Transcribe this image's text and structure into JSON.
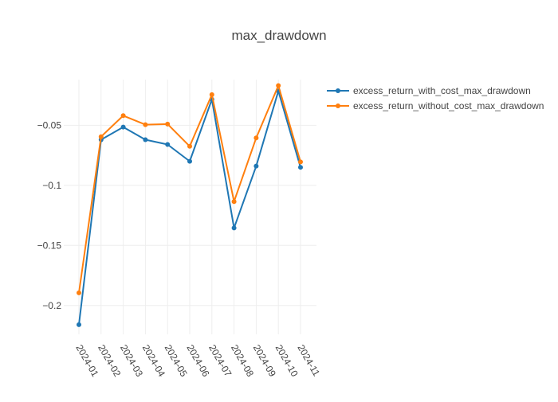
{
  "chart_data": {
    "type": "line",
    "title": "max_drawdown",
    "xlabel": "",
    "ylabel": "",
    "x": [
      "2024-01",
      "2024-02",
      "2024-03",
      "2024-04",
      "2024-05",
      "2024-06",
      "2024-07",
      "2024-08",
      "2024-09",
      "2024-10",
      "2024-11"
    ],
    "y_ticks": [
      -0.05,
      -0.1,
      -0.15,
      -0.2
    ],
    "y_tick_labels": [
      "−0.05",
      "−0.1",
      "−0.15",
      "−0.2"
    ],
    "ylim": [
      -0.224,
      -0.012
    ],
    "grid": true,
    "legend_position": "top-right",
    "series": [
      {
        "name": "excess_return_with_cost_max_drawdown",
        "color": "#1f77b4",
        "values": [
          -0.216,
          -0.062,
          -0.0515,
          -0.062,
          -0.066,
          -0.08,
          -0.0285,
          -0.1355,
          -0.084,
          -0.0215,
          -0.085
        ]
      },
      {
        "name": "excess_return_without_cost_max_drawdown",
        "color": "#ff7f0e",
        "values": [
          -0.1895,
          -0.0595,
          -0.042,
          -0.0495,
          -0.049,
          -0.0675,
          -0.0245,
          -0.1135,
          -0.0605,
          -0.017,
          -0.0805
        ]
      }
    ]
  }
}
